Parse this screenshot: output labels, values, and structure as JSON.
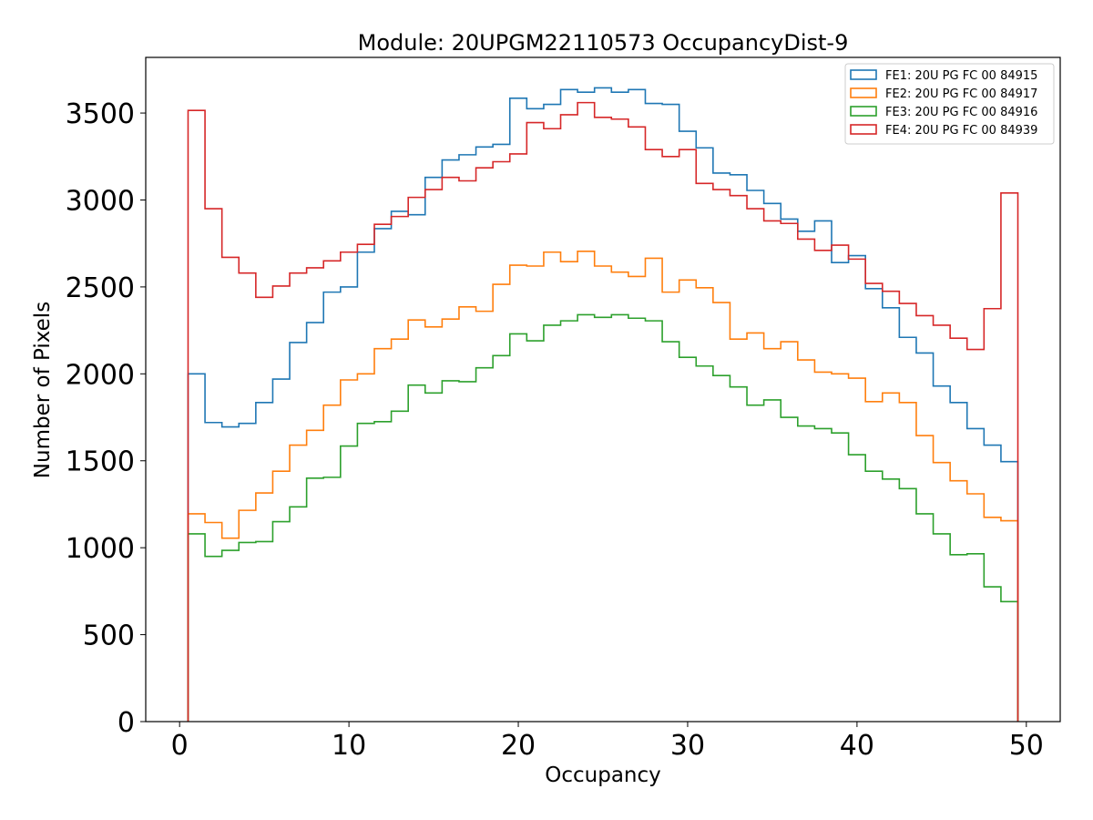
{
  "chart_data": {
    "type": "line",
    "style": "step-histogram",
    "title": "Module: 20UPGM22110573 OccupancyDist-9",
    "xlabel": "Occupancy",
    "ylabel": "Number of Pixels",
    "xlim": [
      -2,
      52
    ],
    "ylim": [
      0,
      3820
    ],
    "xticks": [
      0,
      10,
      20,
      30,
      40,
      50
    ],
    "xtick_labels": [
      "0",
      "10",
      "20",
      "30",
      "40",
      "50"
    ],
    "yticks": [
      0,
      500,
      1000,
      1500,
      2000,
      2500,
      3000,
      3500
    ],
    "ytick_labels": [
      "0",
      "500",
      "1000",
      "1500",
      "2000",
      "2500",
      "3000",
      "3500"
    ],
    "grid": false,
    "legend_position": "top-right",
    "bin_edges_start": 0.5,
    "bin_width": 1,
    "series": [
      {
        "name": "FE1: 20U PG FC 00 84915",
        "color": "#1f77b4",
        "values": [
          2000,
          1720,
          1695,
          1715,
          1835,
          1970,
          2180,
          2295,
          2470,
          2500,
          2700,
          2835,
          2935,
          2915,
          3130,
          3230,
          3260,
          3305,
          3320,
          3585,
          3525,
          3550,
          3635,
          3620,
          3645,
          3620,
          3635,
          3555,
          3550,
          3395,
          3300,
          3155,
          3145,
          3055,
          2980,
          2890,
          2820,
          2880,
          2640,
          2680,
          2490,
          2380,
          2210,
          2120,
          1930,
          1835,
          1685,
          1590,
          1495
        ]
      },
      {
        "name": "FE2: 20U PG FC 00 84917",
        "color": "#ff7f0e",
        "values": [
          1195,
          1145,
          1055,
          1215,
          1315,
          1440,
          1590,
          1675,
          1820,
          1965,
          2000,
          2145,
          2200,
          2310,
          2270,
          2315,
          2385,
          2360,
          2515,
          2625,
          2620,
          2700,
          2645,
          2705,
          2620,
          2585,
          2560,
          2665,
          2470,
          2540,
          2495,
          2410,
          2200,
          2235,
          2145,
          2185,
          2080,
          2010,
          2000,
          1975,
          1840,
          1890,
          1835,
          1645,
          1490,
          1385,
          1310,
          1175,
          1155
        ]
      },
      {
        "name": "FE3: 20U PG FC 00 84916",
        "color": "#2ca02c",
        "values": [
          1080,
          950,
          985,
          1030,
          1035,
          1150,
          1235,
          1400,
          1405,
          1585,
          1715,
          1725,
          1785,
          1935,
          1890,
          1960,
          1955,
          2035,
          2105,
          2230,
          2190,
          2280,
          2305,
          2340,
          2325,
          2340,
          2320,
          2305,
          2185,
          2095,
          2045,
          1990,
          1925,
          1820,
          1850,
          1750,
          1700,
          1685,
          1660,
          1535,
          1440,
          1395,
          1340,
          1195,
          1080,
          960,
          965,
          775,
          690
        ]
      },
      {
        "name": "FE4: 20U PG FC 00 84939",
        "color": "#d62728",
        "values": [
          3515,
          2950,
          2670,
          2580,
          2440,
          2505,
          2580,
          2610,
          2650,
          2700,
          2745,
          2860,
          2905,
          3015,
          3060,
          3130,
          3110,
          3185,
          3220,
          3265,
          3445,
          3410,
          3490,
          3560,
          3475,
          3465,
          3420,
          3290,
          3250,
          3290,
          3095,
          3060,
          3025,
          2950,
          2880,
          2865,
          2775,
          2710,
          2740,
          2660,
          2520,
          2475,
          2405,
          2335,
          2280,
          2205,
          2140,
          2375,
          3040
        ]
      }
    ]
  }
}
